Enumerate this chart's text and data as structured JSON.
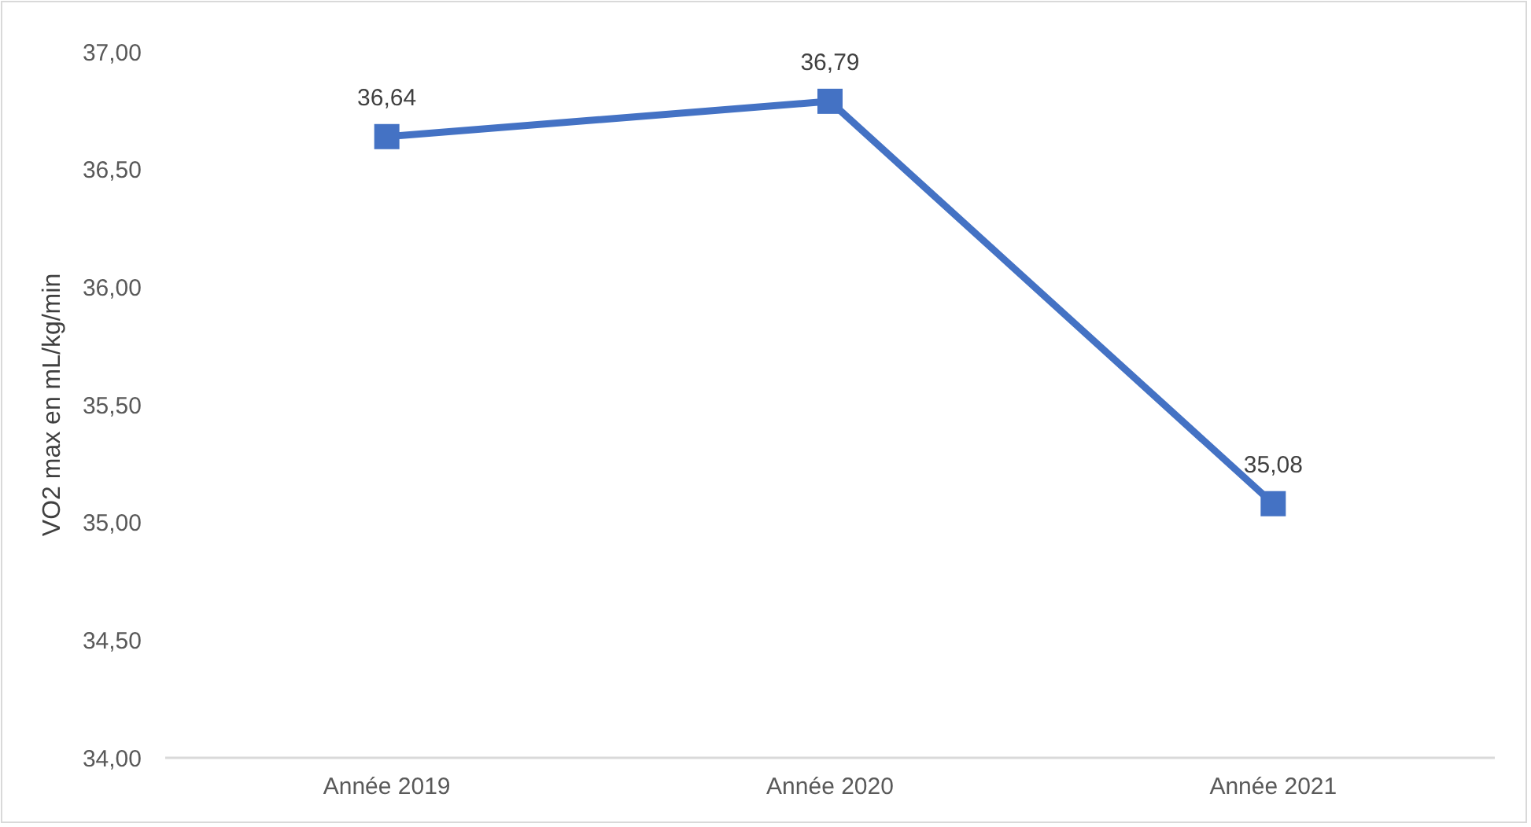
{
  "chart_data": {
    "type": "line",
    "ylabel": "VO2 max en mL/kg/min",
    "categories": [
      "Année 2019",
      "Année 2020",
      "Année 2021"
    ],
    "series": [
      {
        "color": "#4472c4",
        "values": [
          36.64,
          36.79,
          35.08
        ],
        "value_labels": [
          "36,64",
          "36,79",
          "35,08"
        ]
      }
    ],
    "ylim": [
      34,
      37
    ],
    "yticks": [
      {
        "value": 34,
        "label": "34,00"
      },
      {
        "value": 34.5,
        "label": "34,50"
      },
      {
        "value": 35,
        "label": "35,00"
      },
      {
        "value": 35.5,
        "label": "35,50"
      },
      {
        "value": 36,
        "label": "36,00"
      },
      {
        "value": 36.5,
        "label": "36,50"
      },
      {
        "value": 37,
        "label": "37,00"
      }
    ],
    "marker": "square",
    "line_style": "solid",
    "grid": false
  }
}
